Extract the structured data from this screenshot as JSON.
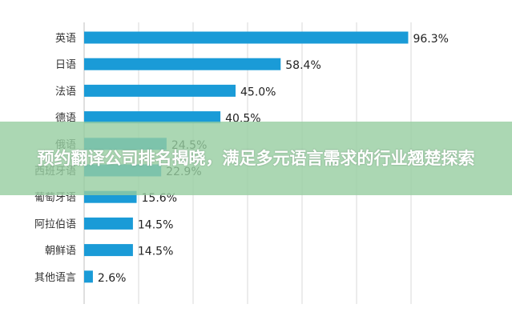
{
  "chart_data": {
    "type": "bar",
    "orientation": "horizontal",
    "title": "",
    "categories": [
      "英语",
      "日语",
      "法语",
      "德语",
      "俄语",
      "西班牙语",
      "葡萄牙语",
      "阿拉伯语",
      "朝鲜语",
      "其他语言"
    ],
    "values": [
      96.3,
      58.4,
      45.0,
      40.5,
      24.5,
      22.9,
      15.6,
      14.5,
      14.5,
      2.6
    ],
    "labels": [
      "96.3%",
      "58.4%",
      "45.0%",
      "40.5%",
      "24.5%",
      "22.9%",
      "15.6%",
      "14.5%",
      "14.5%",
      "2.6%"
    ],
    "xlim": [
      0,
      100
    ],
    "grid": true,
    "bar_color": "#1a9bd7"
  },
  "banner": {
    "title": "预约翻译公司排名揭晓，满足多元语言需求的行业翘楚探索",
    "color": "#96cda0"
  }
}
